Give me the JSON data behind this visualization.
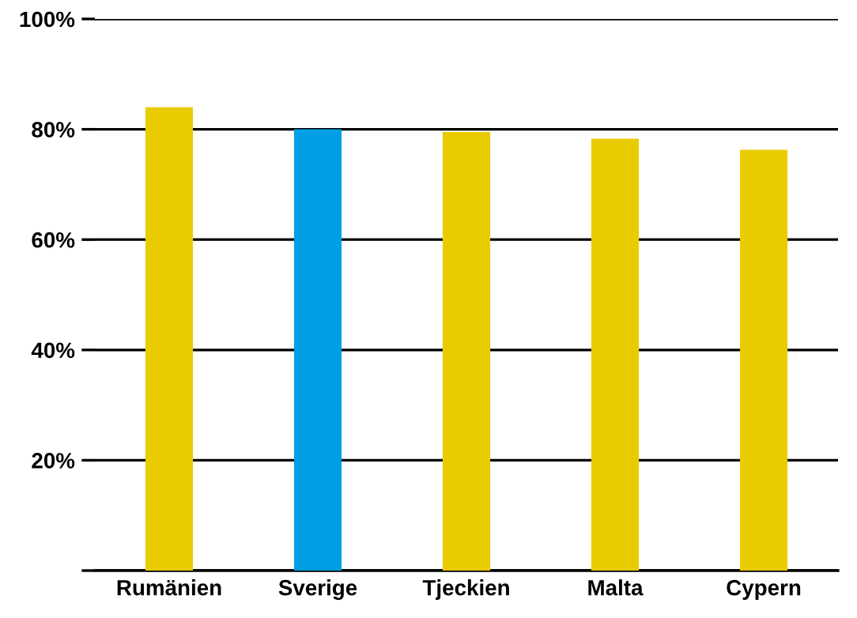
{
  "chart_data": {
    "type": "bar",
    "categories": [
      "Rumänien",
      "Sverige",
      "Tjeckien",
      "Malta",
      "Cypern"
    ],
    "values": [
      84,
      80,
      79.5,
      78.3,
      76.3
    ],
    "colors": [
      "#e8cc00",
      "#009fe3",
      "#e8cc00",
      "#e8cc00",
      "#e8cc00"
    ],
    "ylim": [
      0,
      100
    ],
    "yticks": [
      {
        "value": 0,
        "label": null
      },
      {
        "value": 20,
        "label": "20%"
      },
      {
        "value": 40,
        "label": "40%"
      },
      {
        "value": 60,
        "label": "60%"
      },
      {
        "value": 80,
        "label": "80%"
      },
      {
        "value": 100,
        "label": "100%"
      }
    ],
    "grid": "y"
  }
}
